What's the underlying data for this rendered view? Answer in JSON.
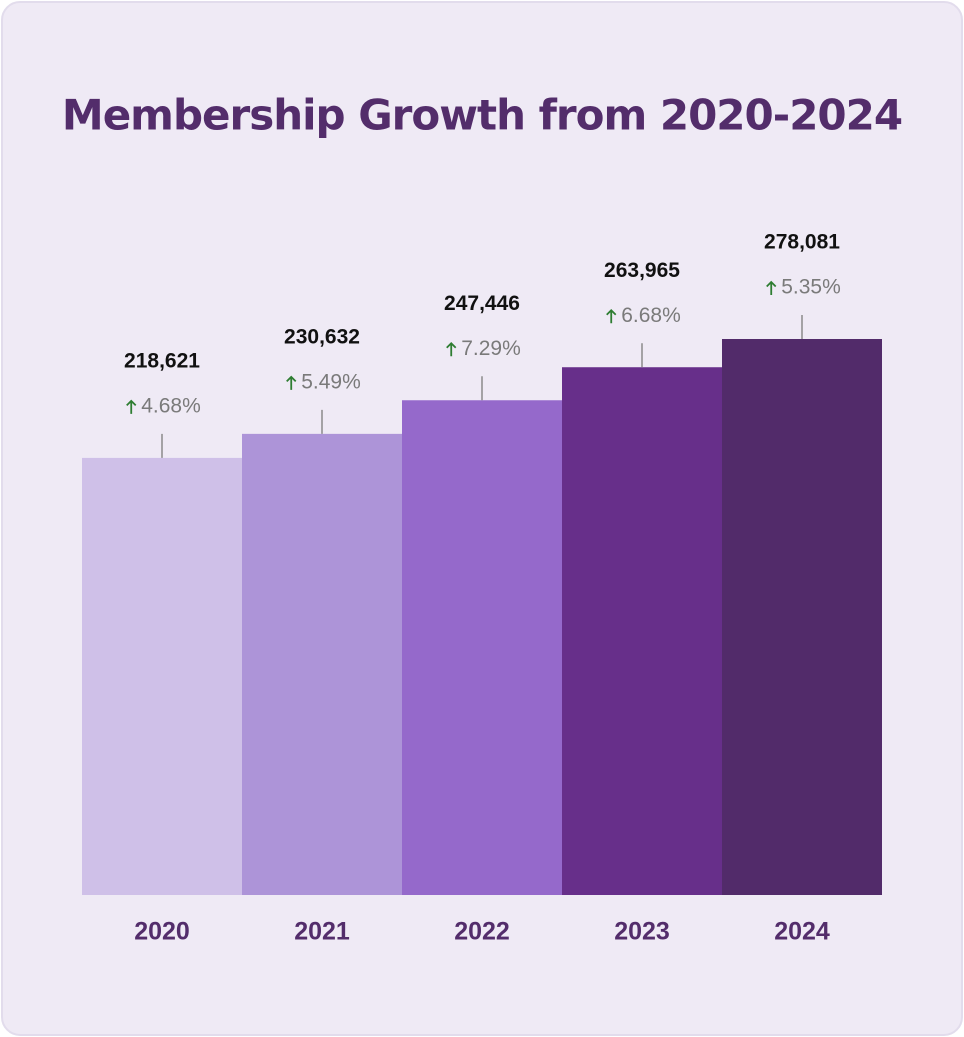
{
  "chart_data": {
    "type": "bar",
    "title": "Membership Growth from 2020-2024",
    "categories": [
      "2020",
      "2021",
      "2022",
      "2023",
      "2024"
    ],
    "values": [
      218621,
      230632,
      247446,
      263965,
      278081
    ],
    "value_labels": [
      "218,621",
      "230,632",
      "247,446",
      "263,965",
      "278,081"
    ],
    "growth_labels": [
      "4.68%",
      "5.49%",
      "7.29%",
      "6.68%",
      "5.35%"
    ],
    "colors": [
      "#cfc0e8",
      "#ad94d8",
      "#9569cb",
      "#672f8a",
      "#522b6a"
    ]
  }
}
